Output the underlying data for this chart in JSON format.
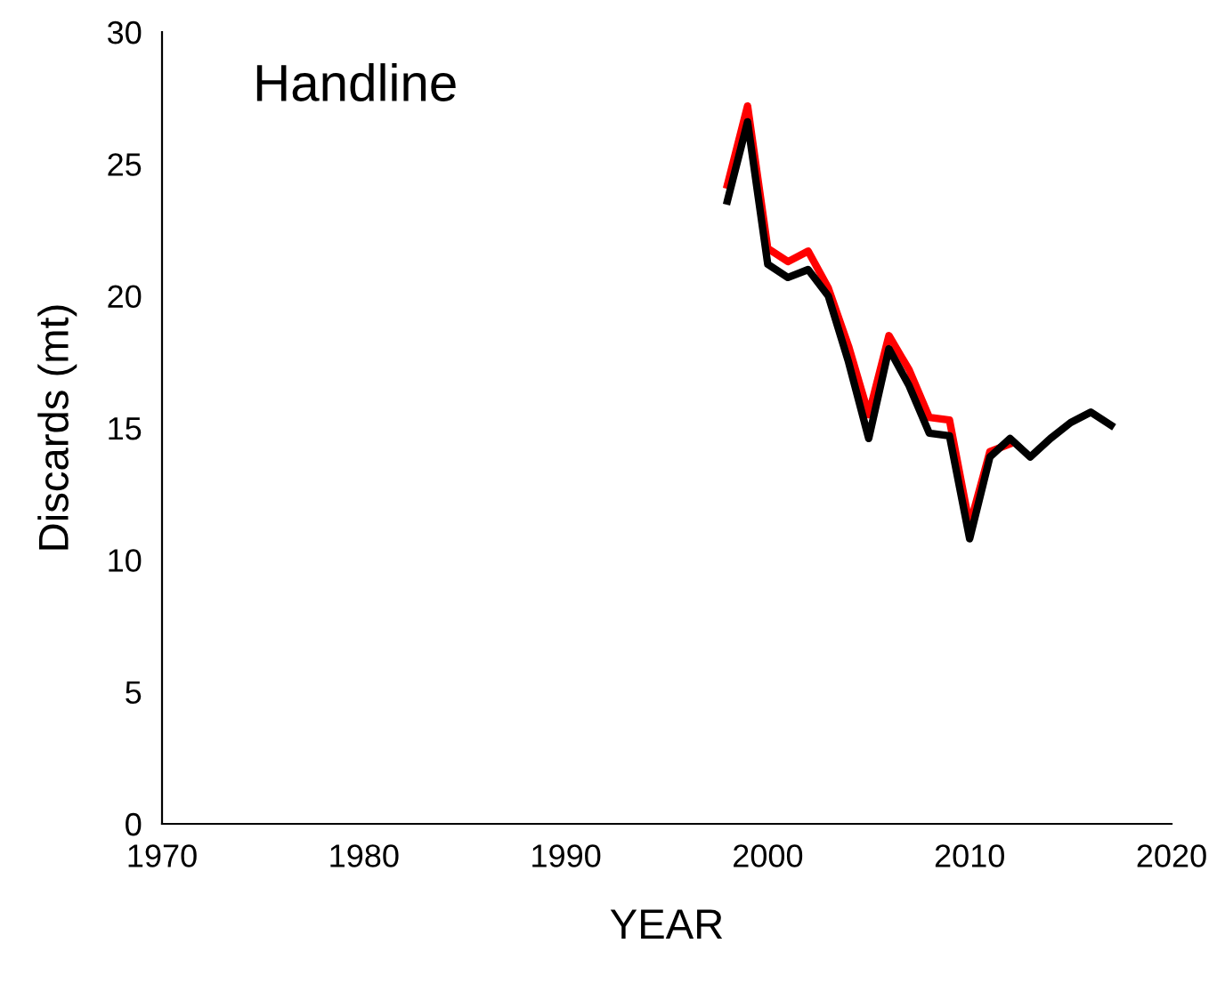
{
  "chart_data": {
    "type": "line",
    "xlabel": "YEAR",
    "ylabel": "Discards (mt)",
    "annotations": [
      "Handline"
    ],
    "x": [
      1998,
      1999,
      2000,
      2001,
      2002,
      2003,
      2004,
      2005,
      2006,
      2007,
      2008,
      2009,
      2010,
      2011,
      2012,
      2013,
      2014,
      2015,
      2016,
      2017
    ],
    "series": [
      {
        "color": "#ff0000",
        "values": [
          24.2,
          27.2,
          21.8,
          21.3,
          21.7,
          20.3,
          18.1,
          15.5,
          18.5,
          17.2,
          15.4,
          15.3,
          11.3,
          14.1,
          14.4,
          null,
          null,
          null,
          null,
          null
        ]
      },
      {
        "color": "#000000",
        "values": [
          23.6,
          26.6,
          21.2,
          20.7,
          21.0,
          20.0,
          17.5,
          14.6,
          18.0,
          16.6,
          14.8,
          14.7,
          10.8,
          13.9,
          14.6,
          13.9,
          14.6,
          15.2,
          15.6,
          15.1
        ]
      }
    ],
    "xlim": [
      1970,
      2020
    ],
    "xticks": [
      1970,
      1980,
      1990,
      2000,
      2010,
      2020
    ],
    "ylim": [
      0,
      30
    ],
    "yticks": [
      0,
      5,
      10,
      15,
      20,
      25,
      30
    ],
    "grid": false,
    "legend": false,
    "marker": "none",
    "line_style": "solid"
  }
}
